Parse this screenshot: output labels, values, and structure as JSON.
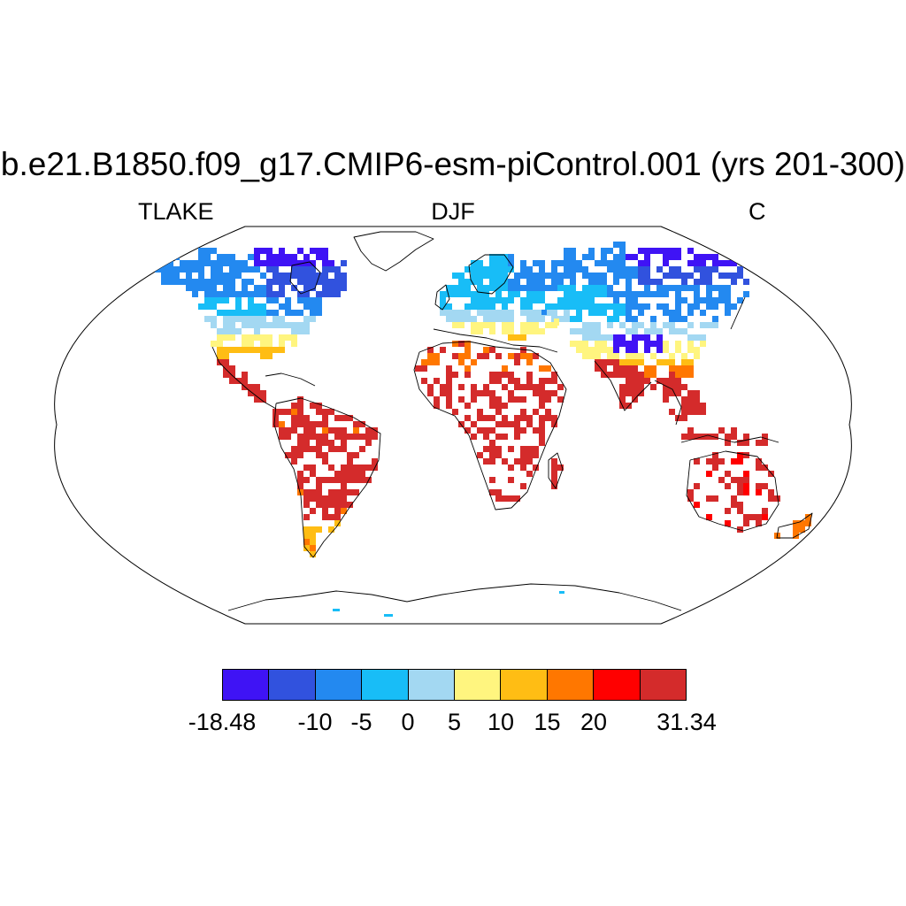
{
  "header": {
    "title": "b.e21.B1850.f09_g17.CMIP6-esm-piControl.001 (yrs 201-300)",
    "variable": "TLAKE",
    "season": "DJF",
    "units": "C"
  },
  "colorbar": {
    "colors": [
      "#3f13f5",
      "#3152de",
      "#2389f0",
      "#18bdf7",
      "#a3d8f2",
      "#fff57f",
      "#ffbd14",
      "#ff7700",
      "#ff0000",
      "#d42b2b"
    ],
    "labels": [
      "-18.48",
      "-10",
      "-5",
      "0",
      "5",
      "10",
      "15",
      "20",
      "31.34"
    ],
    "label_boundaries": [
      0,
      2,
      3,
      4,
      5,
      6,
      7,
      8,
      10
    ]
  },
  "map": {
    "projection": "Robinson",
    "field": "lake temperature",
    "regions": [
      {
        "name": "Canadian Arctic",
        "color_index": 0
      },
      {
        "name": "Canada",
        "color_index": 1
      },
      {
        "name": "Alaska / northern Canada",
        "color_index": 2
      },
      {
        "name": "Scandinavia",
        "color_index": 3
      },
      {
        "name": "Siberia",
        "color_index": 2
      },
      {
        "name": "Tibetan Plateau",
        "color_index": 0
      },
      {
        "name": "Europe",
        "color_index": 4
      },
      {
        "name": "Mediterranean",
        "color_index": 6
      },
      {
        "name": "US South",
        "color_index": 6
      },
      {
        "name": "Central America",
        "color_index": 9
      },
      {
        "name": "South America",
        "color_index": 9
      },
      {
        "name": "Patagonia",
        "color_index": 6
      },
      {
        "name": "Africa",
        "color_index": 9
      },
      {
        "name": "India",
        "color_index": 9
      },
      {
        "name": "Southeast Asia",
        "color_index": 9
      },
      {
        "name": "Australia",
        "color_index": 9
      },
      {
        "name": "New Zealand",
        "color_index": 7
      }
    ]
  }
}
